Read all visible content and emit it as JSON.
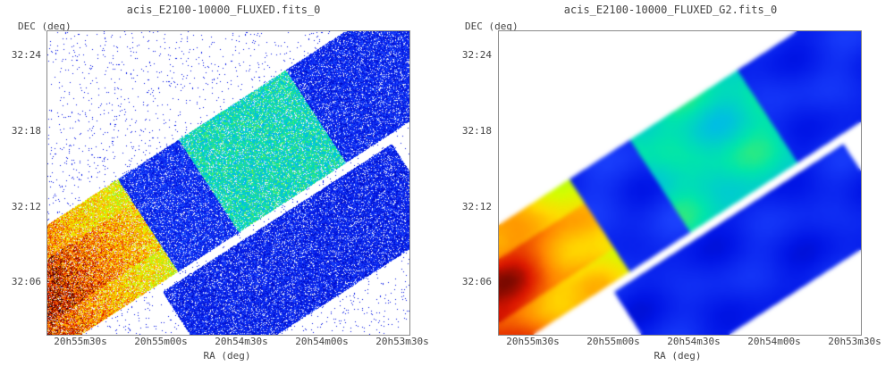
{
  "panels": [
    {
      "title": "acis_E2100-10000_FLUXED.fits_0",
      "ylabel": "DEC (deg)",
      "xlabel": "RA (deg)",
      "yticks": [
        "32:24",
        "32:18",
        "32:12",
        "32:06"
      ],
      "xticks": [
        "20h55m30s",
        "20h55m00s",
        "20h54m30s",
        "20h54m00s",
        "20h53m30s"
      ],
      "smoothing": "raw"
    },
    {
      "title": "acis_E2100-10000_FLUXED_G2.fits_0",
      "ylabel": "DEC (deg)",
      "xlabel": "RA (deg)",
      "yticks": [
        "32:24",
        "32:18",
        "32:12",
        "32:06"
      ],
      "xticks": [
        "20h55m30s",
        "20h55m00s",
        "20h54m30s",
        "20h54m00s",
        "20h53m30s"
      ],
      "smoothing": "gaussian-smoothed"
    }
  ],
  "colormap": [
    "#00008b",
    "#0000ff",
    "#00bfff",
    "#00ff80",
    "#c0ff00",
    "#ffff00",
    "#ff8000",
    "#ff0000",
    "#800000",
    "#000000"
  ]
}
